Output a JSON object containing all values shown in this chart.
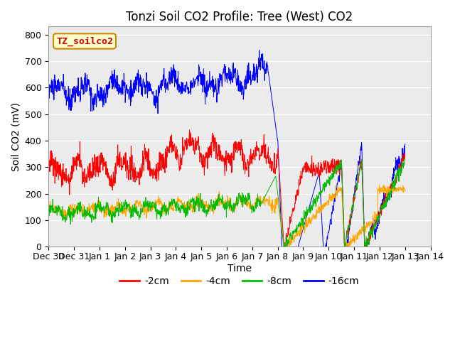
{
  "title": "Tonzi Soil CO2 Profile: Tree (West) CO2",
  "xlabel": "Time",
  "ylabel": "Soil CO2 (mV)",
  "ylim": [
    0,
    830
  ],
  "yticks": [
    0,
    100,
    200,
    300,
    400,
    500,
    600,
    700,
    800
  ],
  "legend_label": "TZ_soilco2",
  "series_labels": [
    "-2cm",
    "-4cm",
    "-8cm",
    "-16cm"
  ],
  "series_colors": [
    "#ff0000",
    "#ffa500",
    "#00bb00",
    "#0000ff"
  ],
  "bg_color": "#ebebeb",
  "title_fontsize": 12,
  "axis_fontsize": 10,
  "tick_fontsize": 9
}
